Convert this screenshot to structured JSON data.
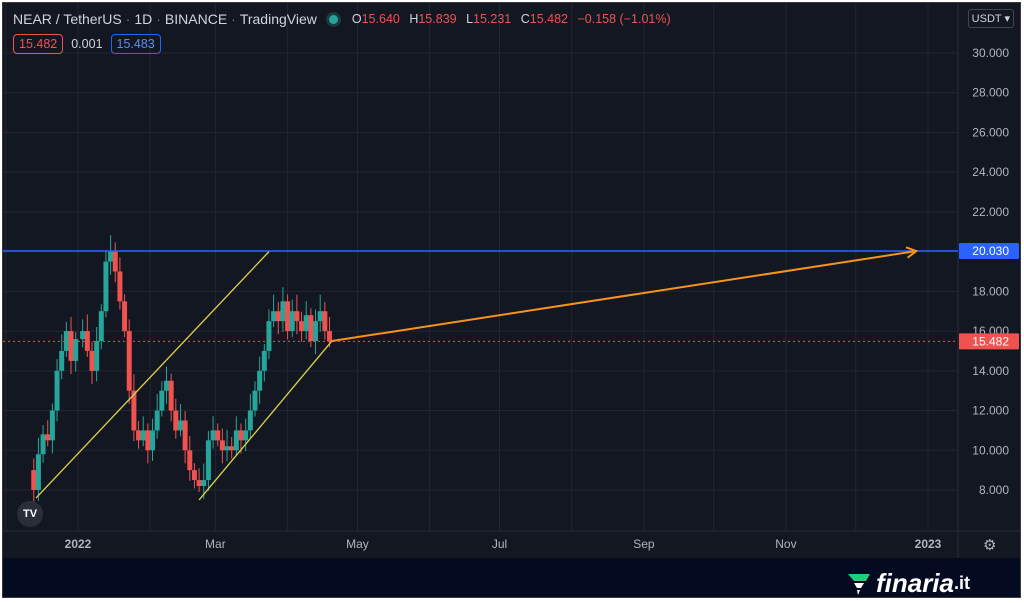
{
  "header": {
    "symbol": "NEAR / TetherUS",
    "interval": "1D",
    "exchange": "BINANCE",
    "source": "TradingView",
    "o_label": "O",
    "o_value": "15.640",
    "h_label": "H",
    "h_value": "15.839",
    "l_label": "L",
    "l_value": "15.231",
    "c_label": "C",
    "c_value": "15.482",
    "change": "−0.158 (−1.01%)",
    "sell_price": "15.482",
    "spread": "0.001",
    "buy_price": "15.483",
    "currency": "USDT"
  },
  "price_axis": {
    "ticks": [
      "30.000",
      "28.000",
      "26.000",
      "24.000",
      "22.000",
      "20.000",
      "18.000",
      "16.000",
      "14.000",
      "12.000",
      "10.000",
      "8.000"
    ],
    "tag_level": "20.030",
    "tag_last": "15.482"
  },
  "time_axis": {
    "labels": [
      "2022",
      "Mar",
      "May",
      "Jul",
      "Sep",
      "Nov",
      "2023"
    ]
  },
  "colors": {
    "background": "#131722",
    "up": "#26a69a",
    "down": "#ef5350",
    "level_line": "#2962ff",
    "trendline": "#e0d447",
    "projection": "#f7931a"
  },
  "chart_data": {
    "type": "candlestick",
    "symbol": "NEAR / TetherUS",
    "ylim": [
      7.2,
      31
    ],
    "close_series": [
      {
        "date": "2021-12-09",
        "price": 9.0
      },
      {
        "date": "2021-12-13",
        "price": 8.0
      },
      {
        "date": "2021-12-15",
        "price": 9.8
      },
      {
        "date": "2021-12-17",
        "price": 10.8
      },
      {
        "date": "2021-12-19",
        "price": 10.5
      },
      {
        "date": "2021-12-21",
        "price": 12.0
      },
      {
        "date": "2021-12-23",
        "price": 14.0
      },
      {
        "date": "2021-12-25",
        "price": 15.0
      },
      {
        "date": "2021-12-27",
        "price": 16.0
      },
      {
        "date": "2021-12-29",
        "price": 14.5
      },
      {
        "date": "2021-12-31",
        "price": 15.6
      },
      {
        "date": "2022-01-03",
        "price": 16.0
      },
      {
        "date": "2022-01-05",
        "price": 15.0
      },
      {
        "date": "2022-01-07",
        "price": 14.0
      },
      {
        "date": "2022-01-09",
        "price": 15.5
      },
      {
        "date": "2022-01-11",
        "price": 17.0
      },
      {
        "date": "2022-01-13",
        "price": 19.5
      },
      {
        "date": "2022-01-15",
        "price": 20.0
      },
      {
        "date": "2022-01-17",
        "price": 19.0
      },
      {
        "date": "2022-01-19",
        "price": 17.5
      },
      {
        "date": "2022-01-21",
        "price": 16.0
      },
      {
        "date": "2022-01-23",
        "price": 13.0
      },
      {
        "date": "2022-01-25",
        "price": 11.0
      },
      {
        "date": "2022-01-27",
        "price": 10.5
      },
      {
        "date": "2022-01-29",
        "price": 11.0
      },
      {
        "date": "2022-01-31",
        "price": 10.0
      },
      {
        "date": "2022-02-02",
        "price": 11.0
      },
      {
        "date": "2022-02-04",
        "price": 12.0
      },
      {
        "date": "2022-02-06",
        "price": 13.0
      },
      {
        "date": "2022-02-08",
        "price": 13.5
      },
      {
        "date": "2022-02-10",
        "price": 12.0
      },
      {
        "date": "2022-02-12",
        "price": 11.0
      },
      {
        "date": "2022-02-14",
        "price": 11.5
      },
      {
        "date": "2022-02-16",
        "price": 10.0
      },
      {
        "date": "2022-02-18",
        "price": 9.0
      },
      {
        "date": "2022-02-20",
        "price": 8.5
      },
      {
        "date": "2022-02-22",
        "price": 8.2
      },
      {
        "date": "2022-02-24",
        "price": 8.5
      },
      {
        "date": "2022-02-26",
        "price": 10.5
      },
      {
        "date": "2022-02-28",
        "price": 11.0
      },
      {
        "date": "2022-03-02",
        "price": 10.5
      },
      {
        "date": "2022-03-04",
        "price": 10.0
      },
      {
        "date": "2022-03-06",
        "price": 10.2
      },
      {
        "date": "2022-03-08",
        "price": 10.0
      },
      {
        "date": "2022-03-10",
        "price": 11.0
      },
      {
        "date": "2022-03-12",
        "price": 10.5
      },
      {
        "date": "2022-03-14",
        "price": 11.0
      },
      {
        "date": "2022-03-16",
        "price": 12.0
      },
      {
        "date": "2022-03-18",
        "price": 13.0
      },
      {
        "date": "2022-03-20",
        "price": 14.0
      },
      {
        "date": "2022-03-22",
        "price": 15.0
      },
      {
        "date": "2022-03-24",
        "price": 16.5
      },
      {
        "date": "2022-03-26",
        "price": 17.0
      },
      {
        "date": "2022-03-28",
        "price": 16.5
      },
      {
        "date": "2022-03-30",
        "price": 17.5
      },
      {
        "date": "2022-04-01",
        "price": 16.0
      },
      {
        "date": "2022-04-03",
        "price": 17.0
      },
      {
        "date": "2022-04-05",
        "price": 16.5
      },
      {
        "date": "2022-04-07",
        "price": 16.0
      },
      {
        "date": "2022-04-09",
        "price": 16.8
      },
      {
        "date": "2022-04-11",
        "price": 15.5
      },
      {
        "date": "2022-04-13",
        "price": 16.5
      },
      {
        "date": "2022-04-15",
        "price": 17.0
      },
      {
        "date": "2022-04-17",
        "price": 16.0
      },
      {
        "date": "2022-04-19",
        "price": 15.482
      }
    ],
    "horizontal_level": 20.03,
    "last_price": 15.482,
    "projection": {
      "from": {
        "date": "2022-04-20",
        "price": 15.5
      },
      "to": {
        "date": "2022-12-27",
        "price": 20.03
      }
    },
    "trendlines": [
      {
        "from": {
          "date": "2021-12-14",
          "price": 7.6
        },
        "to": {
          "date": "2022-03-24",
          "price": 20.0
        }
      },
      {
        "date_note": "support",
        "from": {
          "date": "2022-02-22",
          "price": 7.5
        },
        "to": {
          "date": "2022-04-20",
          "price": 15.5
        }
      }
    ]
  }
}
